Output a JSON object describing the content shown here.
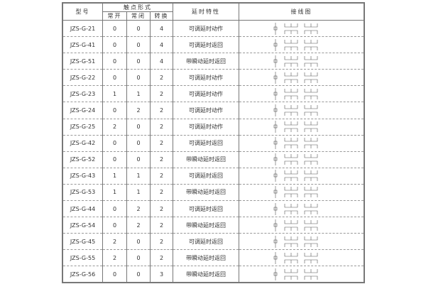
{
  "headers": {
    "model": "型号",
    "contact_form": "触点形式",
    "no": "常开",
    "nc": "常闭",
    "changeover": "转换",
    "delay": "延时特性",
    "wiring": "接线图"
  },
  "rows": [
    {
      "model": "JZS-G-21",
      "no": "0",
      "nc": "0",
      "co": "4",
      "delay": "可调延时动作"
    },
    {
      "model": "JZS-G-41",
      "no": "0",
      "nc": "0",
      "co": "4",
      "delay": "可调延时返回"
    },
    {
      "model": "JZS-G-51",
      "no": "0",
      "nc": "0",
      "co": "4",
      "delay": "带瞬动延时返回"
    },
    {
      "model": "JZS-G-22",
      "no": "0",
      "nc": "0",
      "co": "2",
      "delay": "可调延时动作"
    },
    {
      "model": "JZS-G-23",
      "no": "1",
      "nc": "1",
      "co": "2",
      "delay": "可调延时动作"
    },
    {
      "model": "JZS-G-24",
      "no": "0",
      "nc": "2",
      "co": "2",
      "delay": "可调延时动作"
    },
    {
      "model": "JZS-G-25",
      "no": "2",
      "nc": "0",
      "co": "2",
      "delay": "可调延时动作"
    },
    {
      "model": "JZS-G-42",
      "no": "0",
      "nc": "0",
      "co": "2",
      "delay": "可调延时返回"
    },
    {
      "model": "JZS-G-52",
      "no": "0",
      "nc": "0",
      "co": "2",
      "delay": "带瞬动延时返回"
    },
    {
      "model": "JZS-G-43",
      "no": "1",
      "nc": "1",
      "co": "2",
      "delay": "可调延时返回"
    },
    {
      "model": "JZS-G-53",
      "no": "1",
      "nc": "1",
      "co": "2",
      "delay": "带瞬动延时返回"
    },
    {
      "model": "JZS-G-44",
      "no": "0",
      "nc": "2",
      "co": "2",
      "delay": "可调延时返回"
    },
    {
      "model": "JZS-G-54",
      "no": "0",
      "nc": "2",
      "co": "2",
      "delay": "带瞬动延时返回"
    },
    {
      "model": "JZS-G-45",
      "no": "2",
      "nc": "0",
      "co": "2",
      "delay": "可调延时返回"
    },
    {
      "model": "JZS-G-55",
      "no": "2",
      "nc": "0",
      "co": "2",
      "delay": "带瞬动延时返回"
    },
    {
      "model": "JZS-G-56",
      "no": "0",
      "nc": "0",
      "co": "3",
      "delay": "带瞬动延时返回"
    }
  ]
}
